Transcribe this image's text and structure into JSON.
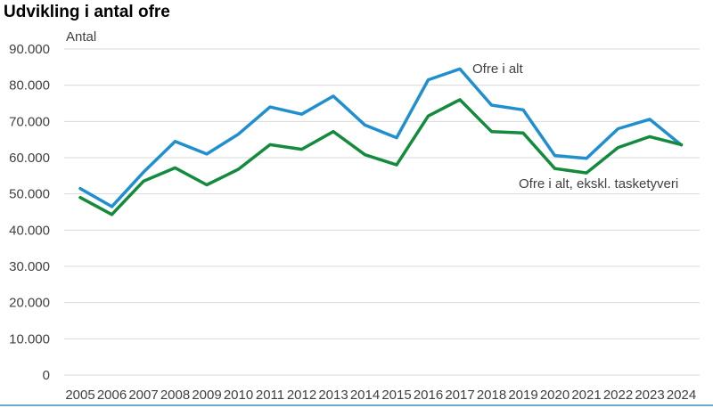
{
  "chart_data": {
    "type": "line",
    "title": "Udvikling i antal ofre",
    "ylabel": "Antal",
    "x": [
      "2005",
      "2006",
      "2007",
      "2008",
      "2009",
      "2010",
      "2011",
      "2012",
      "2013",
      "2014",
      "2015",
      "2016",
      "2017",
      "2018",
      "2019",
      "2020",
      "2021",
      "2022",
      "2023",
      "2024"
    ],
    "ylim": [
      0,
      90000
    ],
    "yticks": [
      0,
      10000,
      20000,
      30000,
      40000,
      50000,
      60000,
      70000,
      80000,
      90000
    ],
    "ytick_labels": [
      "0",
      "10.000",
      "20.000",
      "30.000",
      "40.000",
      "50.000",
      "60.000",
      "70.000",
      "80.000",
      "90.000"
    ],
    "grid": true,
    "series": [
      {
        "name": "Ofre i alt",
        "color": "#1f8fd0",
        "values": [
          51500,
          46500,
          56000,
          64500,
          61000,
          66500,
          74000,
          72000,
          77000,
          69000,
          65500,
          81500,
          84500,
          74500,
          73200,
          60600,
          59800,
          68000,
          70600,
          63500
        ]
      },
      {
        "name": "Ofre i alt, ekskl. tasketyveri",
        "color": "#148a3c",
        "values": [
          49000,
          44300,
          53500,
          57200,
          52500,
          56800,
          63600,
          62300,
          67200,
          60800,
          58000,
          71500,
          76000,
          67200,
          66800,
          57000,
          55800,
          62800,
          65800,
          63600
        ]
      }
    ]
  }
}
